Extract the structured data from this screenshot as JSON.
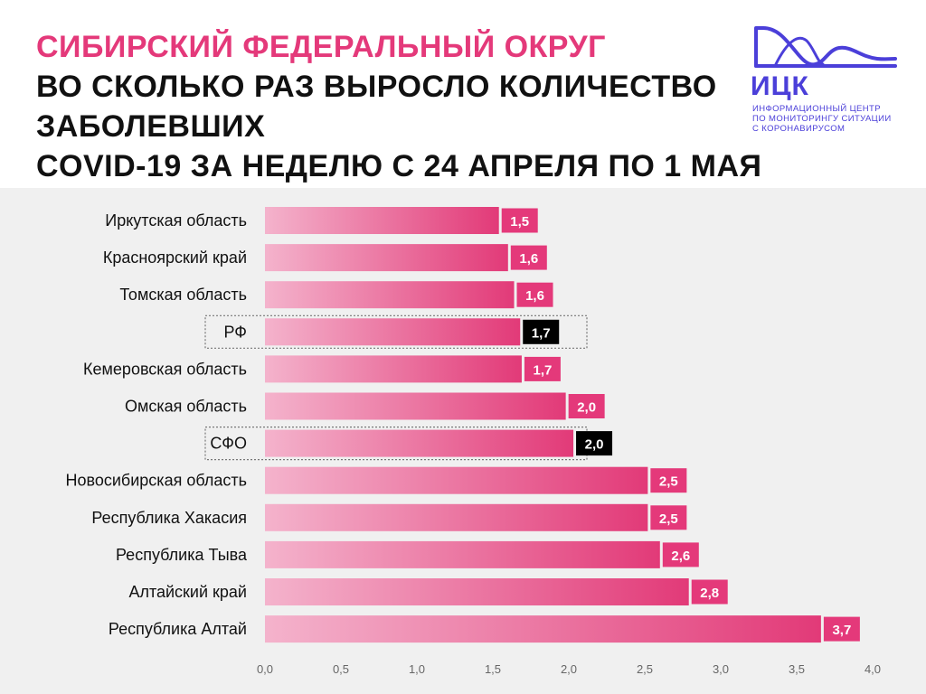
{
  "title": {
    "line1": "Сибирский федеральный округ",
    "line2": "Во сколько раз выросло количество заболевших",
    "line3": "COVID-19 за неделю с 24 апреля по 1 мая"
  },
  "logo": {
    "word": "ИЦК",
    "caption": "Информационный центр\nпо мониторингу ситуации\nс коронавирусом"
  },
  "colors": {
    "accent": "#e4397a",
    "bar_light": "#f4b3cc",
    "bar_dark": "#e23a78",
    "highlight_label": "#000000",
    "logo": "#4b3fd9",
    "background": "#f0f0f0"
  },
  "chart_data": {
    "type": "bar",
    "orientation": "horizontal",
    "categories": [
      "Иркутская область",
      "Красноярский край",
      "Томская область",
      "РФ",
      "Кемеровская область",
      "Омская область",
      "СФО",
      "Новосибирская область",
      "Республика Хакасия",
      "Республика Тыва",
      "Алтайский край",
      "Республика Алтай"
    ],
    "values": [
      1.54,
      1.6,
      1.64,
      1.68,
      1.69,
      1.98,
      2.03,
      2.52,
      2.52,
      2.6,
      2.79,
      3.66
    ],
    "labels": [
      "1,5",
      "1,6",
      "1,6",
      "1,7",
      "1,7",
      "2,0",
      "2,0",
      "2,5",
      "2,5",
      "2,6",
      "2,8",
      "3,7"
    ],
    "highlighted": [
      "РФ",
      "СФО"
    ],
    "xlim": [
      0,
      4
    ],
    "xticks": [
      "0,0",
      "0,5",
      "1,0",
      "1,5",
      "2,0",
      "2,5",
      "3,0",
      "3,5",
      "4,0"
    ],
    "xtick_values": [
      0,
      0.5,
      1,
      1.5,
      2,
      2.5,
      3,
      3.5,
      4
    ],
    "grid": false
  }
}
